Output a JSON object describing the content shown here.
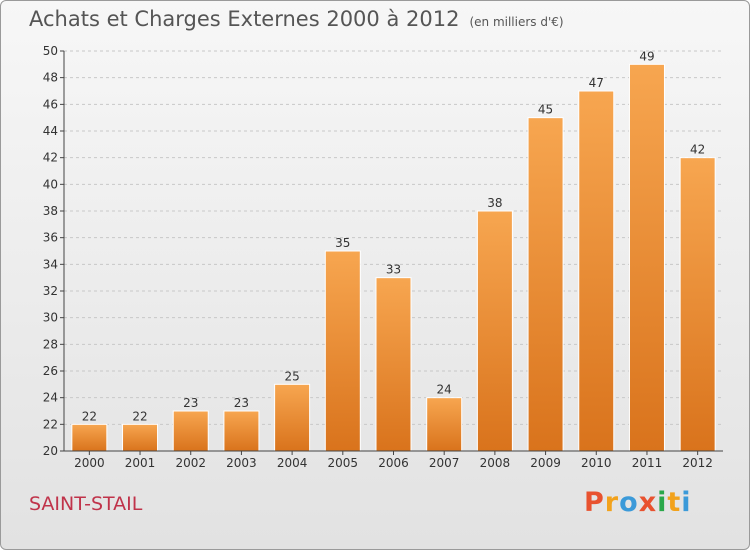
{
  "chart_data": {
    "type": "bar",
    "title": "Achats et Charges Externes 2000 à 2012",
    "unit": "(en milliers d'€)",
    "categories": [
      "2000",
      "2001",
      "2002",
      "2003",
      "2004",
      "2005",
      "2006",
      "2007",
      "2008",
      "2009",
      "2010",
      "2011",
      "2012"
    ],
    "values": [
      22,
      22,
      23,
      23,
      25,
      35,
      33,
      24,
      38,
      45,
      47,
      49,
      42
    ],
    "ylim": [
      20,
      50
    ],
    "yticks": [
      20,
      22,
      24,
      26,
      28,
      30,
      32,
      34,
      36,
      38,
      40,
      42,
      44,
      46,
      48,
      50
    ],
    "grid": true,
    "colors": {
      "bar_top": "#f7a650",
      "bar_bottom": "#d9731c",
      "axis": "#444444",
      "label": "#333333"
    }
  },
  "footer": {
    "commune": "SAINT-STAIL",
    "logo_letters": [
      "P",
      "r",
      "o",
      "x",
      "i",
      "t",
      "i"
    ],
    "logo_colors": [
      "#e8522f",
      "#f2a21c",
      "#3b9ad9",
      "#e8522f",
      "#2aa84a",
      "#f2a21c",
      "#3b9ad9"
    ]
  }
}
